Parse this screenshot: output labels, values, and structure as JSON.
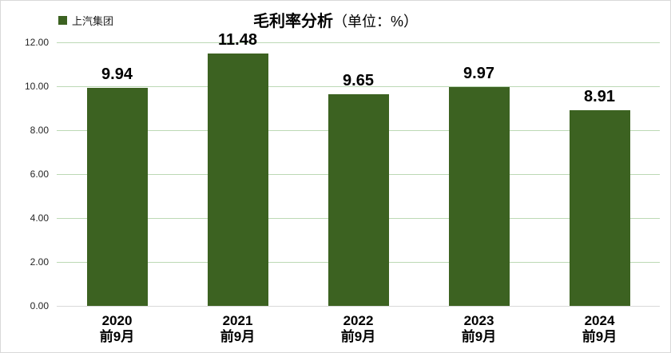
{
  "chart_data": {
    "type": "bar",
    "title_main": "毛利率分析",
    "title_unit": "（单位：%）",
    "legend": [
      {
        "label": "上汽集团",
        "color": "#3C6221"
      }
    ],
    "legend_position": "top-left",
    "categories": [
      {
        "year": "2020",
        "period": "前9月"
      },
      {
        "year": "2021",
        "period": "前9月"
      },
      {
        "year": "2022",
        "period": "前9月"
      },
      {
        "year": "2023",
        "period": "前9月"
      },
      {
        "year": "2024",
        "period": "前9月"
      }
    ],
    "series": [
      {
        "name": "上汽集团",
        "values": [
          9.94,
          11.48,
          9.65,
          9.97,
          8.91
        ],
        "value_labels": [
          "9.94",
          "11.48",
          "9.65",
          "9.97",
          "8.91"
        ]
      }
    ],
    "ylim": [
      0,
      12
    ],
    "ytick_labels": [
      "0.00",
      "2.00",
      "4.00",
      "6.00",
      "8.00",
      "10.00",
      "12.00"
    ],
    "grid": true
  },
  "colors": {
    "bar": "#3C6221",
    "gridline": "#BCD9B5",
    "axis_line": "#D9D9D9",
    "frame_border": "#D9D9D9",
    "title_text": "#000000",
    "value_label_text": "#000000",
    "tick_text": "#262626"
  }
}
